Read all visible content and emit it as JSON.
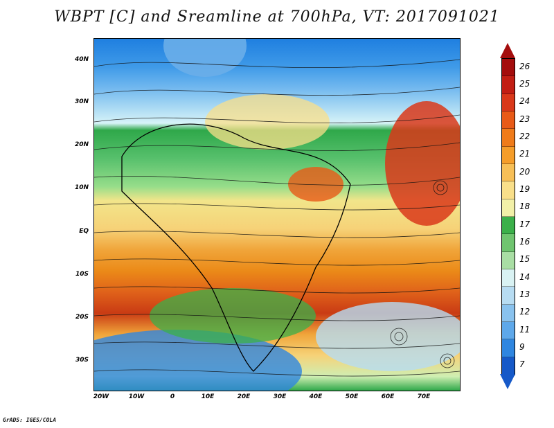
{
  "title": "WBPT [C] and Sreamline at 700hPa, VT: 2017091021",
  "lat_labels": [
    "40N",
    "30N",
    "20N",
    "10N",
    "EQ",
    "10S",
    "20S",
    "30S"
  ],
  "lon_labels": [
    "20W",
    "10W",
    "0",
    "10E",
    "20E",
    "30E",
    "40E",
    "50E",
    "60E",
    "70E"
  ],
  "colorbar": {
    "levels": [
      "26",
      "25",
      "24",
      "23",
      "22",
      "21",
      "20",
      "19",
      "18",
      "17",
      "16",
      "15",
      "14",
      "13",
      "12",
      "11",
      "9",
      "7"
    ],
    "colors": [
      "#a40d0d",
      "#c21e14",
      "#d9381a",
      "#e85a17",
      "#ef7b1a",
      "#f59d2a",
      "#f7bf57",
      "#f9df8a",
      "#f2f0a8",
      "#3bb04a",
      "#6fc46f",
      "#a9dea4",
      "#d9f2f3",
      "#b7dcf2",
      "#89c2ee",
      "#5ea8ea",
      "#2f86e0",
      "#1659c8"
    ]
  },
  "footer": "GrADS: IGES/COLA"
}
